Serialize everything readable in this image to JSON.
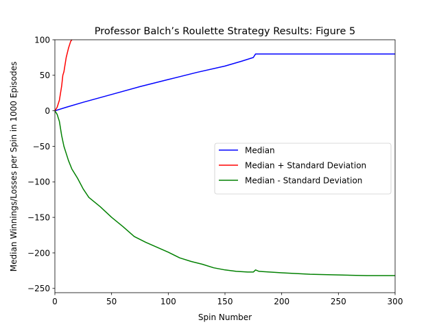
{
  "chart_data": {
    "type": "line",
    "title": "Professor Balch’s Roulette Strategy Results: Figure 5",
    "xlabel": "Spin Number",
    "ylabel": "Median Winnings/Losses per Spin in 1000 Episodes",
    "xlim": [
      0,
      300
    ],
    "ylim": [
      -256,
      100
    ],
    "xticks": [
      0,
      50,
      100,
      150,
      200,
      250,
      300
    ],
    "yticks": [
      100,
      50,
      0,
      -50,
      -100,
      -150,
      -200,
      -250
    ],
    "grid": false,
    "legend_position": "center-right",
    "series": [
      {
        "name": "Median",
        "color": "#0000ff",
        "x": [
          0,
          10,
          25,
          50,
          75,
          100,
          125,
          150,
          165,
          175,
          177,
          200,
          250,
          300
        ],
        "y": [
          0,
          5,
          12,
          23,
          34,
          44,
          54,
          63,
          70,
          75,
          80,
          80,
          80,
          80
        ]
      },
      {
        "name": "Median + Standard Deviation",
        "color": "#ff0000",
        "x": [
          0,
          2,
          4,
          6,
          7,
          8,
          10,
          12,
          14,
          15
        ],
        "y": [
          0,
          5,
          15,
          35,
          50,
          55,
          75,
          88,
          98,
          100
        ]
      },
      {
        "name": "Median - Standard Deviation",
        "color": "#008000",
        "x": [
          0,
          2,
          4,
          6,
          8,
          10,
          12,
          15,
          20,
          25,
          30,
          40,
          50,
          60,
          70,
          80,
          90,
          100,
          110,
          120,
          130,
          140,
          150,
          160,
          170,
          175,
          177,
          180,
          200,
          225,
          250,
          275,
          300
        ],
        "y": [
          0,
          -5,
          -15,
          -35,
          -50,
          -60,
          -70,
          -82,
          -95,
          -110,
          -122,
          -135,
          -150,
          -163,
          -177,
          -185,
          -192,
          -199,
          -207,
          -212,
          -216,
          -221,
          -224,
          -226,
          -227,
          -227,
          -224,
          -226,
          -228,
          -230,
          -231,
          -232,
          -232
        ]
      }
    ]
  }
}
